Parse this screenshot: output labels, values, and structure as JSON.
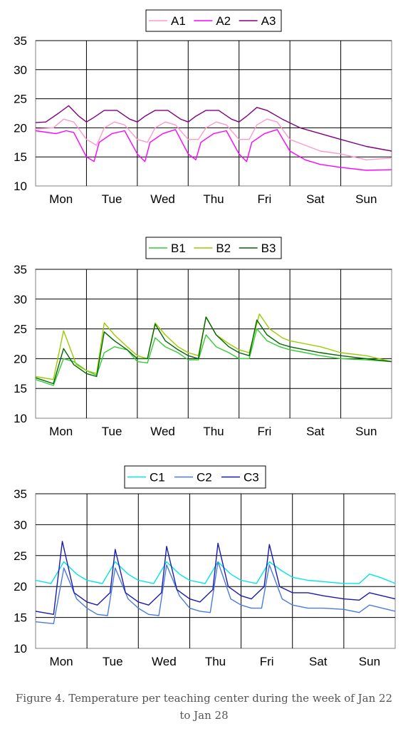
{
  "caption": "Figure 4. Temperature per teaching center during the week of Jan 22 to Jan 28",
  "chart_data": [
    {
      "type": "line",
      "xlabel": "",
      "ylabel": "",
      "categories": [
        "Mon",
        "Tue",
        "Wed",
        "Thu",
        "Fri",
        "Sat",
        "Sun"
      ],
      "ylim": [
        10,
        35
      ],
      "yticks": [
        10,
        15,
        20,
        25,
        30,
        35
      ],
      "grid": true,
      "legend_position": "top-center",
      "x_unit": "days from start of Monday",
      "series": [
        {
          "name": "A1",
          "color": "#ff99cc",
          "x": [
            0,
            0.35,
            0.55,
            0.75,
            1.0,
            1.2,
            1.35,
            1.55,
            1.75,
            2.0,
            2.2,
            2.35,
            2.55,
            2.75,
            3.0,
            3.2,
            3.35,
            3.55,
            3.75,
            4.0,
            4.2,
            4.35,
            4.55,
            4.75,
            5.0,
            5.3,
            5.6,
            6.0,
            6.5,
            7.0
          ],
          "y": [
            19.8,
            20.0,
            21.5,
            21.0,
            18.0,
            17.0,
            20.0,
            21.0,
            20.5,
            18.0,
            17.5,
            20.0,
            21.0,
            20.5,
            18.0,
            18.0,
            20.0,
            21.0,
            20.5,
            18.0,
            18.0,
            20.5,
            21.5,
            21.0,
            18.0,
            17.0,
            16.0,
            15.5,
            14.5,
            14.8
          ]
        },
        {
          "name": "A2",
          "color": "#ff00ff",
          "x": [
            0,
            0.4,
            0.6,
            0.75,
            1.0,
            1.15,
            1.25,
            1.5,
            1.75,
            2.0,
            2.15,
            2.25,
            2.5,
            2.75,
            3.0,
            3.15,
            3.25,
            3.5,
            3.75,
            4.0,
            4.15,
            4.25,
            4.5,
            4.75,
            5.0,
            5.3,
            5.6,
            6.0,
            6.5,
            7.0
          ],
          "y": [
            19.5,
            19.0,
            19.5,
            19.2,
            15.0,
            14.2,
            17.5,
            19.0,
            19.5,
            15.5,
            14.2,
            17.5,
            19.0,
            19.7,
            15.5,
            14.5,
            17.5,
            19.0,
            19.5,
            15.5,
            14.2,
            17.5,
            19.0,
            19.7,
            16.0,
            14.5,
            13.7,
            13.2,
            12.7,
            12.8
          ]
        },
        {
          "name": "A3",
          "color": "#800080",
          "x": [
            0,
            0.2,
            0.45,
            0.65,
            0.85,
            1.0,
            1.15,
            1.35,
            1.6,
            1.85,
            2.0,
            2.15,
            2.35,
            2.6,
            2.85,
            3.0,
            3.15,
            3.35,
            3.6,
            3.85,
            4.0,
            4.15,
            4.35,
            4.55,
            4.85,
            5.2,
            5.6,
            6.0,
            6.5,
            7.0
          ],
          "y": [
            20.9,
            21.0,
            22.5,
            23.8,
            22.0,
            21.0,
            21.8,
            23.0,
            23.0,
            21.5,
            21.0,
            22.0,
            23.0,
            23.0,
            21.5,
            21.0,
            22.0,
            23.0,
            23.0,
            21.5,
            21.0,
            22.0,
            23.5,
            23.0,
            21.5,
            20.0,
            19.0,
            18.0,
            16.8,
            16.0
          ]
        }
      ]
    },
    {
      "type": "line",
      "xlabel": "",
      "ylabel": "",
      "categories": [
        "Mon",
        "Tue",
        "Wed",
        "Thu",
        "Fri",
        "Sat",
        "Sun"
      ],
      "ylim": [
        10,
        35
      ],
      "yticks": [
        10,
        15,
        20,
        25,
        30,
        35
      ],
      "grid": true,
      "legend_position": "top-center",
      "x_unit": "days from start of Monday",
      "series": [
        {
          "name": "B1",
          "color": "#33cc33",
          "x": [
            0,
            0.35,
            0.55,
            0.75,
            1.0,
            1.2,
            1.35,
            1.55,
            1.8,
            2.0,
            2.2,
            2.35,
            2.55,
            2.8,
            3.0,
            3.2,
            3.35,
            3.55,
            3.8,
            4.0,
            4.2,
            4.35,
            4.55,
            4.8,
            5.0,
            5.3,
            5.6,
            6.0,
            6.5,
            7.0
          ],
          "y": [
            16.5,
            15.5,
            20.0,
            19.5,
            18.0,
            17.2,
            21.0,
            22.0,
            21.5,
            19.5,
            19.3,
            23.5,
            22.0,
            21.0,
            19.8,
            19.8,
            24.0,
            22.0,
            21.0,
            20.0,
            20.0,
            25.0,
            23.0,
            22.0,
            21.5,
            21.0,
            20.5,
            20.0,
            19.8,
            19.5
          ]
        },
        {
          "name": "B2",
          "color": "#99cc00",
          "x": [
            0,
            0.35,
            0.55,
            0.8,
            1.0,
            1.2,
            1.35,
            1.55,
            1.8,
            2.0,
            2.2,
            2.35,
            2.55,
            2.8,
            3.0,
            3.2,
            3.35,
            3.55,
            3.8,
            4.0,
            4.2,
            4.4,
            4.6,
            4.85,
            5.0,
            5.3,
            5.6,
            6.0,
            6.5,
            7.0
          ],
          "y": [
            17.0,
            16.5,
            24.7,
            19.0,
            18.0,
            17.5,
            26.0,
            24.0,
            22.0,
            20.5,
            20.0,
            26.0,
            24.0,
            22.0,
            21.0,
            20.5,
            27.0,
            24.0,
            22.5,
            21.5,
            21.0,
            27.5,
            25.0,
            23.5,
            23.0,
            22.5,
            22.0,
            21.0,
            20.5,
            19.5
          ]
        },
        {
          "name": "B3",
          "color": "#006600",
          "x": [
            0,
            0.35,
            0.55,
            0.75,
            1.0,
            1.2,
            1.35,
            1.55,
            1.8,
            2.0,
            2.2,
            2.35,
            2.55,
            2.8,
            3.0,
            3.2,
            3.35,
            3.55,
            3.8,
            4.0,
            4.2,
            4.35,
            4.55,
            4.8,
            5.0,
            5.3,
            5.6,
            6.0,
            6.5,
            7.0
          ],
          "y": [
            16.8,
            15.8,
            21.7,
            19.0,
            17.5,
            17.0,
            24.5,
            23.0,
            21.5,
            20.0,
            20.0,
            25.8,
            23.0,
            21.5,
            20.5,
            20.0,
            27.0,
            24.0,
            22.0,
            21.0,
            20.5,
            26.5,
            24.0,
            22.5,
            22.0,
            21.5,
            21.0,
            20.5,
            20.0,
            19.5
          ]
        }
      ]
    },
    {
      "type": "line",
      "xlabel": "",
      "ylabel": "",
      "categories": [
        "Mon",
        "Tue",
        "Wed",
        "Thu",
        "Fri",
        "Sat",
        "Sun"
      ],
      "ylim": [
        10,
        35
      ],
      "yticks": [
        10,
        15,
        20,
        25,
        30,
        35
      ],
      "grid": true,
      "legend_position": "top-center",
      "x_unit": "days from start of Monday",
      "series": [
        {
          "name": "C1",
          "color": "#00e5e5",
          "x": [
            0,
            0.3,
            0.55,
            0.8,
            1.0,
            1.3,
            1.55,
            1.8,
            2.0,
            2.3,
            2.55,
            2.8,
            3.0,
            3.3,
            3.55,
            3.8,
            4.0,
            4.3,
            4.55,
            4.8,
            5.0,
            5.3,
            5.6,
            6.0,
            6.3,
            6.5,
            6.7,
            7.0
          ],
          "y": [
            21.0,
            20.5,
            24.0,
            22.0,
            21.0,
            20.5,
            24.0,
            22.0,
            21.0,
            20.5,
            24.0,
            22.0,
            21.0,
            20.5,
            24.0,
            22.0,
            21.0,
            20.5,
            24.0,
            22.5,
            21.5,
            21.0,
            20.8,
            20.5,
            20.5,
            22.0,
            21.5,
            20.5
          ]
        },
        {
          "name": "C2",
          "color": "#4a7ae0",
          "x": [
            0,
            0.35,
            0.55,
            0.8,
            1.0,
            1.2,
            1.4,
            1.55,
            1.8,
            2.0,
            2.2,
            2.4,
            2.55,
            2.8,
            3.0,
            3.2,
            3.4,
            3.55,
            3.8,
            4.0,
            4.2,
            4.4,
            4.55,
            4.8,
            5.0,
            5.3,
            5.6,
            6.0,
            6.3,
            6.5,
            7.0
          ],
          "y": [
            14.3,
            14.0,
            23.0,
            18.0,
            16.5,
            15.5,
            15.3,
            23.0,
            18.0,
            16.5,
            15.5,
            15.3,
            23.5,
            18.5,
            16.5,
            16.0,
            15.8,
            24.0,
            18.0,
            17.0,
            16.5,
            16.5,
            23.5,
            18.0,
            17.0,
            16.5,
            16.5,
            16.3,
            15.8,
            17.0,
            16.0
          ]
        },
        {
          "name": "C3",
          "color": "#1a1ab0",
          "x": [
            0,
            0.35,
            0.52,
            0.75,
            1.0,
            1.2,
            1.45,
            1.55,
            1.75,
            2.0,
            2.2,
            2.45,
            2.55,
            2.75,
            3.0,
            3.2,
            3.45,
            3.55,
            3.75,
            4.0,
            4.2,
            4.45,
            4.55,
            4.75,
            5.0,
            5.3,
            5.6,
            6.0,
            6.3,
            6.5,
            7.0
          ],
          "y": [
            16.0,
            15.5,
            27.3,
            19.0,
            17.5,
            17.0,
            19.0,
            26.0,
            19.0,
            17.5,
            17.0,
            19.0,
            26.5,
            19.5,
            18.0,
            17.5,
            19.5,
            27.0,
            20.0,
            18.5,
            18.0,
            20.0,
            26.8,
            20.0,
            19.0,
            19.0,
            18.5,
            18.0,
            17.8,
            19.0,
            18.0
          ]
        }
      ]
    }
  ]
}
